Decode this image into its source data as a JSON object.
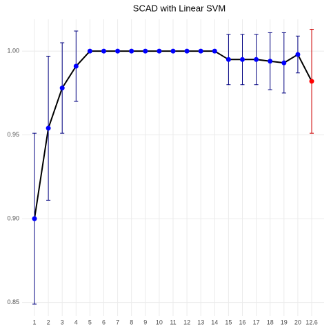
{
  "chart_data": {
    "type": "line",
    "title": "SCAD with Linear SVM",
    "categories": [
      "1",
      "2",
      "3",
      "4",
      "5",
      "6",
      "7",
      "8",
      "9",
      "10",
      "11",
      "12",
      "13",
      "14",
      "15",
      "16",
      "17",
      "18",
      "19",
      "20",
      "12.6"
    ],
    "values": [
      0.9,
      0.954,
      0.978,
      0.991,
      1.0,
      1.0,
      1.0,
      1.0,
      1.0,
      1.0,
      1.0,
      1.0,
      1.0,
      1.0,
      0.995,
      0.995,
      0.995,
      0.994,
      0.993,
      0.998,
      0.982
    ],
    "errors": [
      0.051,
      0.043,
      0.027,
      0.021,
      0,
      0,
      0,
      0,
      0,
      0,
      0,
      0,
      0,
      0,
      0.015,
      0.015,
      0.015,
      0.017,
      0.018,
      0.011,
      0.031
    ],
    "colors": [
      "#0000ff",
      "#0000ff",
      "#0000ff",
      "#0000ff",
      "#0000ff",
      "#0000ff",
      "#0000ff",
      "#0000ff",
      "#0000ff",
      "#0000ff",
      "#0000ff",
      "#0000ff",
      "#0000ff",
      "#0000ff",
      "#0000ff",
      "#0000ff",
      "#0000ff",
      "#0000ff",
      "#0000ff",
      "#0000ff",
      "#ff0000"
    ],
    "error_colors": [
      "#000080",
      "#000080",
      "#000080",
      "#000080",
      "#000080",
      "#000080",
      "#000080",
      "#000080",
      "#000080",
      "#000080",
      "#000080",
      "#000080",
      "#000080",
      "#000080",
      "#000080",
      "#000080",
      "#000080",
      "#000080",
      "#000080",
      "#000080",
      "#cc0000"
    ],
    "line_color": "#000000",
    "ylim": [
      0.842,
      1.019
    ],
    "yticks": [
      {
        "value": 0.85,
        "label": "0.85"
      },
      {
        "value": 0.9,
        "label": "0.90"
      },
      {
        "value": 0.95,
        "label": "0.95"
      },
      {
        "value": 1.0,
        "label": "1.00"
      }
    ],
    "grid": true
  }
}
